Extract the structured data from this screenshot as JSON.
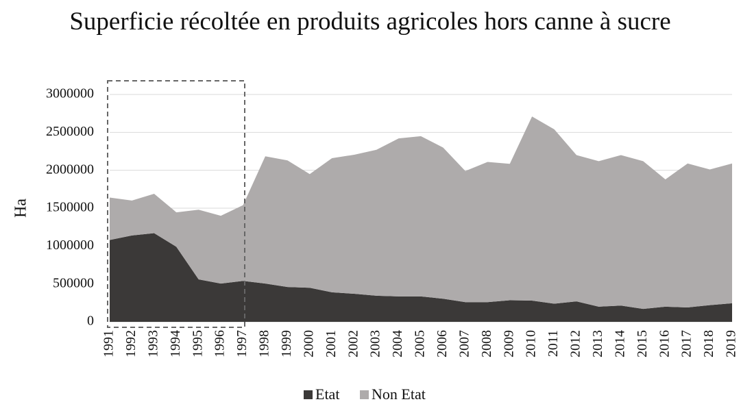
{
  "chart_data": {
    "type": "stacked_area",
    "title": "Superficie récoltée en produits agricoles hors canne à sucre",
    "y_label": "Ha",
    "categories": [
      "1991",
      "1992",
      "1993",
      "1994",
      "1995",
      "1996",
      "1997",
      "1998",
      "1999",
      "2000",
      "2001",
      "2002",
      "2003",
      "2004",
      "2005",
      "2006",
      "2007",
      "2008",
      "2009",
      "2010",
      "2011",
      "2012",
      "2013",
      "2014",
      "2015",
      "2016",
      "2017",
      "2018",
      "2019"
    ],
    "series": [
      {
        "name": "Etat",
        "color": "#3b3938",
        "values": [
          1080000,
          1140000,
          1170000,
          990000,
          560000,
          505000,
          540000,
          505000,
          460000,
          450000,
          390000,
          370000,
          345000,
          335000,
          335000,
          305000,
          260000,
          260000,
          285000,
          280000,
          240000,
          270000,
          200000,
          215000,
          170000,
          200000,
          190000,
          220000,
          245000
        ]
      },
      {
        "name": "Non Etat",
        "color": "#aeabab",
        "values": [
          560000,
          460000,
          520000,
          455000,
          920000,
          895000,
          1000000,
          1680000,
          1670000,
          1500000,
          1770000,
          1835000,
          1925000,
          2085000,
          2115000,
          1995000,
          1730000,
          1850000,
          1800000,
          2430000,
          2300000,
          1930000,
          1920000,
          1985000,
          1950000,
          1680000,
          1900000,
          1790000,
          1845000
        ]
      }
    ],
    "ylim": [
      0,
      3000000
    ],
    "yticks": [
      0,
      500000,
      1000000,
      1500000,
      2000000,
      2500000,
      3000000
    ],
    "grid": true,
    "legend": "bottom"
  }
}
